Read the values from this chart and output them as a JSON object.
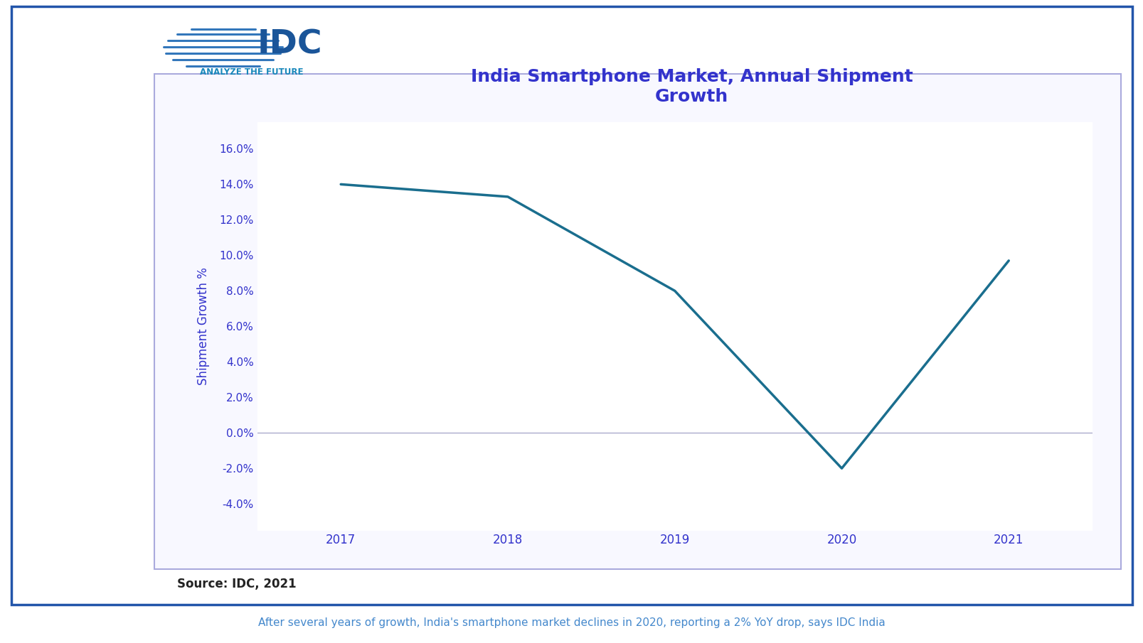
{
  "title": "India Smartphone Market, Annual Shipment\nGrowth",
  "xlabel": "",
  "ylabel": "Shipment Growth %",
  "years": [
    2017,
    2018,
    2019,
    2020,
    2021
  ],
  "values": [
    0.14,
    0.133,
    0.08,
    -0.02,
    0.097
  ],
  "line_color": "#1a6e8e",
  "line_width": 2.5,
  "title_color": "#3333cc",
  "ylabel_color": "#3333cc",
  "tick_color": "#3333cc",
  "yticks": [
    -0.04,
    -0.02,
    0.0,
    0.02,
    0.04,
    0.06,
    0.08,
    0.1,
    0.12,
    0.14,
    0.16
  ],
  "ylim": [
    -0.055,
    0.175
  ],
  "xlim": [
    2016.5,
    2021.5
  ],
  "zero_line_color": "#aaaacc",
  "source_text": "Source: IDC, 2021",
  "footer_text": "After several years of growth, India's smartphone market declines in 2020, reporting a 2% YoY drop, says IDC India",
  "footer_color": "#4488cc",
  "outer_box_color": "#2255aa",
  "inner_box_color": "#aaaadd",
  "background_color": "#ffffff",
  "chart_bg_color": "#ffffff",
  "title_fontsize": 18,
  "tick_fontsize": 11,
  "ylabel_fontsize": 12,
  "source_fontsize": 12,
  "footer_fontsize": 11,
  "idc_text_color": "#1a5599",
  "idc_sub_color": "#1a88bb",
  "logo_line_color": "#3377bb"
}
